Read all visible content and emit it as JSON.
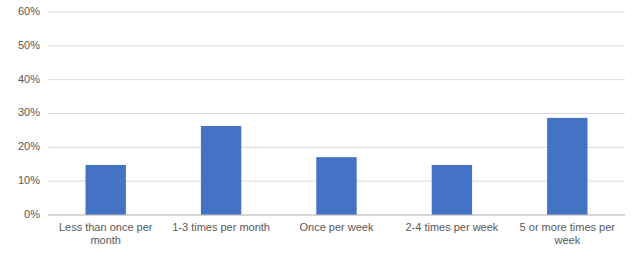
{
  "chart_data": {
    "type": "bar",
    "categories": [
      "Less than once per\nmonth",
      "1-3 times per month",
      "Once per week",
      "2-4 times per week",
      "5 or more times per\nweek"
    ],
    "values": [
      0.148,
      0.263,
      0.171,
      0.148,
      0.287
    ],
    "color": "#4472C4",
    "ylim": [
      0,
      0.6
    ],
    "yticks": [
      {
        "value": 0.0,
        "label": "0%"
      },
      {
        "value": 0.1,
        "label": "10%"
      },
      {
        "value": 0.2,
        "label": "20%"
      },
      {
        "value": 0.3,
        "label": "30%"
      },
      {
        "value": 0.4,
        "label": "40%"
      },
      {
        "value": 0.5,
        "label": "50%"
      },
      {
        "value": 0.6,
        "label": "60%"
      }
    ],
    "grid": true
  }
}
